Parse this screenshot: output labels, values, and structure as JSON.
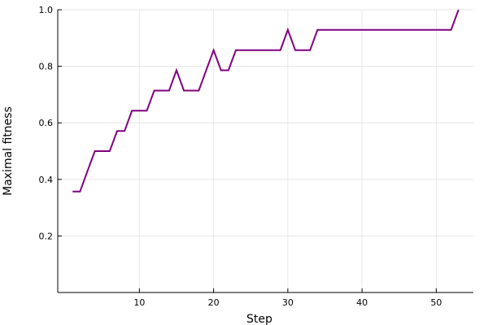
{
  "chart_data": {
    "type": "line",
    "xlabel": "Step",
    "ylabel": "Maximal fitness",
    "xlim": [
      -1,
      55
    ],
    "ylim": [
      0,
      1
    ],
    "x_ticks": [
      10,
      20,
      30,
      40,
      50
    ],
    "y_ticks": [
      0.2,
      0.4,
      0.6,
      0.8,
      1.0
    ],
    "x_tick_labels": [
      "10",
      "20",
      "30",
      "40",
      "50"
    ],
    "y_tick_labels": [
      "0.2",
      "0.4",
      "0.6",
      "0.8",
      "1.0"
    ],
    "grid": true,
    "legend": "none",
    "series": [
      {
        "color": "#800080",
        "x": [
          1,
          2,
          3,
          4,
          5,
          6,
          7,
          8,
          9,
          10,
          11,
          12,
          13,
          14,
          15,
          16,
          17,
          18,
          19,
          20,
          21,
          22,
          23,
          24,
          25,
          26,
          27,
          28,
          29,
          30,
          31,
          32,
          33,
          34,
          35,
          36,
          37,
          38,
          39,
          40,
          41,
          42,
          43,
          44,
          45,
          46,
          47,
          48,
          49,
          50,
          51,
          52,
          53
        ],
        "y": [
          0.357,
          0.357,
          0.429,
          0.5,
          0.5,
          0.5,
          0.571,
          0.571,
          0.643,
          0.643,
          0.643,
          0.714,
          0.714,
          0.714,
          0.786,
          0.714,
          0.714,
          0.714,
          0.786,
          0.857,
          0.786,
          0.786,
          0.857,
          0.857,
          0.857,
          0.857,
          0.857,
          0.857,
          0.857,
          0.929,
          0.857,
          0.857,
          0.857,
          0.929,
          0.929,
          0.929,
          0.929,
          0.929,
          0.929,
          0.929,
          0.929,
          0.929,
          0.929,
          0.929,
          0.929,
          0.929,
          0.929,
          0.929,
          0.929,
          0.929,
          0.929,
          0.929,
          1.0
        ]
      }
    ]
  }
}
